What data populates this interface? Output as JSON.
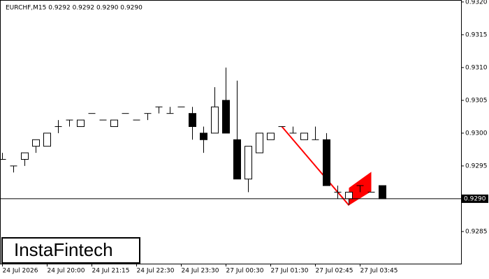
{
  "chart_data": {
    "type": "candlestick",
    "title": "EURCHF,M15  0.9292 0.9292 0.9290 0.9290",
    "watermark": "InstaFintech",
    "categories": [
      "24 Jul 2026",
      null,
      null,
      null,
      "24 Jul 20:00",
      null,
      null,
      null,
      "24 Jul 21:15",
      null,
      null,
      null,
      "24 Jul 22:30",
      null,
      null,
      null,
      "24 Jul 23:30",
      null,
      null,
      null,
      "27 Jul 00:30",
      null,
      null,
      null,
      "27 Jul 01:30",
      null,
      null,
      null,
      "27 Jul 02:45",
      null,
      null,
      null,
      "27 Jul 03:45",
      null,
      null
    ],
    "open": [
      0.9296,
      0.9295,
      0.9296,
      0.9298,
      0.9298,
      0.9301,
      0.9302,
      0.9301,
      0.9303,
      0.9302,
      0.9301,
      0.9303,
      0.9302,
      0.9303,
      0.9304,
      0.9303,
      0.9304,
      0.9303,
      0.93,
      0.93,
      0.9305,
      0.9299,
      0.9293,
      0.9297,
      0.9299,
      0.9301,
      0.93,
      0.9299,
      0.9299,
      0.9299,
      0.9291,
      0.929,
      0.9292,
      0.9291,
      0.9292
    ],
    "high": [
      0.9297,
      0.9295,
      0.9297,
      0.9299,
      0.93,
      0.9302,
      0.9302,
      0.9302,
      0.9303,
      0.9302,
      0.9302,
      0.9303,
      0.9302,
      0.9303,
      0.9304,
      0.9304,
      0.9304,
      0.9304,
      0.9301,
      0.9307,
      0.931,
      0.9308,
      0.9298,
      0.93,
      0.93,
      0.9301,
      0.9301,
      0.93,
      0.9301,
      0.93,
      0.9292,
      0.9291,
      0.9292,
      0.9291,
      0.9292
    ],
    "low": [
      0.9296,
      0.9294,
      0.9295,
      0.9297,
      0.9298,
      0.93,
      0.9301,
      0.9301,
      0.9303,
      0.9302,
      0.9301,
      0.9303,
      0.9302,
      0.9302,
      0.9303,
      0.9303,
      0.9304,
      0.9299,
      0.9297,
      0.93,
      0.93,
      0.9293,
      0.9291,
      0.9297,
      0.9299,
      0.9301,
      0.93,
      0.9299,
      0.9299,
      0.9292,
      0.929,
      0.9289,
      0.9291,
      0.9291,
      0.929
    ],
    "close": [
      0.9296,
      0.9295,
      0.9297,
      0.9299,
      0.93,
      0.9301,
      0.9302,
      0.9302,
      0.9303,
      0.9302,
      0.9302,
      0.9303,
      0.9302,
      0.9303,
      0.9304,
      0.9303,
      0.9304,
      0.9301,
      0.9299,
      0.9304,
      0.93,
      0.9293,
      0.9298,
      0.93,
      0.93,
      0.9301,
      0.93,
      0.93,
      0.9299,
      0.9292,
      0.9291,
      0.9291,
      0.9292,
      0.9291,
      0.929
    ],
    "ylim": [
      0.92801,
      0.93203
    ],
    "yticks": [
      {
        "value": 0.9285,
        "label": "0.9285"
      },
      {
        "value": 0.929,
        "label": "0.9290"
      },
      {
        "value": 0.9295,
        "label": "0.9295"
      },
      {
        "value": 0.93,
        "label": "0.9300"
      },
      {
        "value": 0.9305,
        "label": "0.9305"
      },
      {
        "value": 0.931,
        "label": "0.9310"
      },
      {
        "value": 0.9315,
        "label": "0.9315"
      },
      {
        "value": 0.932,
        "label": "0.9320"
      }
    ],
    "current_price": {
      "value": 0.929,
      "label": "0.9290"
    },
    "up_color": "#ffffff",
    "down_color": "#000000",
    "pattern_color": "#ff0000"
  }
}
